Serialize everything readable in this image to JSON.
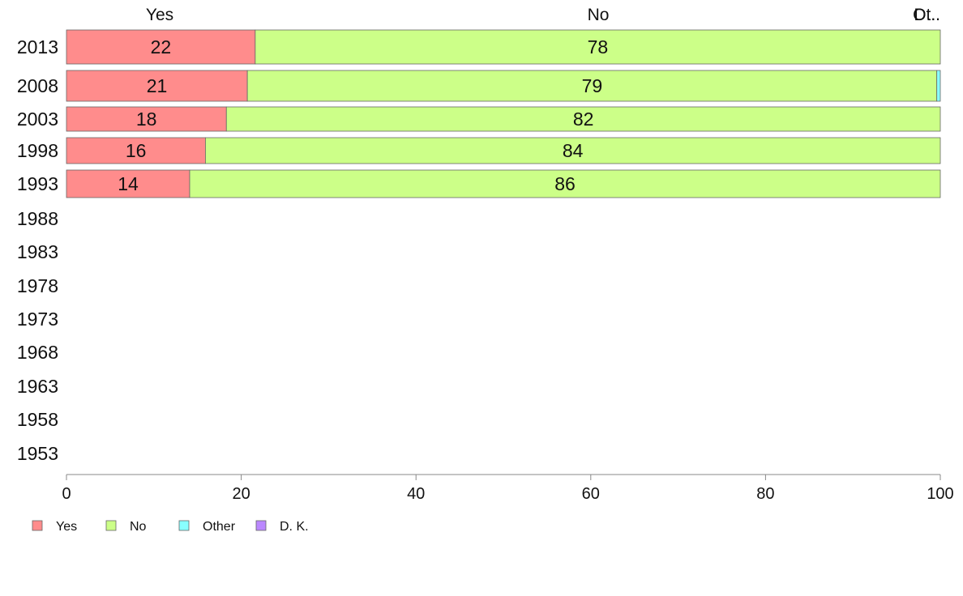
{
  "chart_data": {
    "type": "bar",
    "orientation": "horizontal",
    "stacked": true,
    "categories": [
      "2013",
      "2008",
      "2003",
      "1998",
      "1993",
      "1988",
      "1983",
      "1978",
      "1973",
      "1968",
      "1963",
      "1958",
      "1953"
    ],
    "series": [
      {
        "name": "Yes",
        "color": "#ff8c8c",
        "values": [
          21.6,
          20.7,
          18.3,
          15.9,
          14.1,
          null,
          null,
          null,
          null,
          null,
          null,
          null,
          null
        ],
        "labels": [
          "22",
          "21",
          "18",
          "16",
          "14",
          "",
          "",
          "",
          "",
          "",
          "",
          "",
          ""
        ]
      },
      {
        "name": "No",
        "color": "#ccff88",
        "values": [
          78.4,
          78.9,
          81.7,
          84.1,
          85.9,
          null,
          null,
          null,
          null,
          null,
          null,
          null,
          null
        ],
        "labels": [
          "78",
          "79",
          "82",
          "84",
          "86",
          "",
          "",
          "",
          "",
          "",
          "",
          "",
          ""
        ]
      },
      {
        "name": "Other",
        "color": "#88ffff",
        "values": [
          0,
          0.4,
          0,
          0,
          0,
          null,
          null,
          null,
          null,
          null,
          null,
          null,
          null
        ],
        "labels": [
          "",
          "",
          "",
          "",
          "",
          "",
          "",
          "",
          "",
          "",
          "",
          "",
          ""
        ]
      },
      {
        "name": "D. K.",
        "color": "#bb88ff",
        "values": [
          0,
          0,
          0,
          0,
          0,
          null,
          null,
          null,
          null,
          null,
          null,
          null,
          null
        ],
        "labels": [
          "",
          "",
          "",
          "",
          "",
          "",
          "",
          "",
          "",
          "",
          "",
          "",
          ""
        ]
      }
    ],
    "column_headers": [
      "Yes",
      "No",
      "Ot..",
      "D..."
    ],
    "xlim": [
      0,
      100
    ],
    "xticks": [
      0,
      20,
      40,
      60,
      80,
      100
    ],
    "xlabel": "",
    "ylabel": "",
    "title": "",
    "grid": false,
    "legend_placement": "bottom-left"
  }
}
